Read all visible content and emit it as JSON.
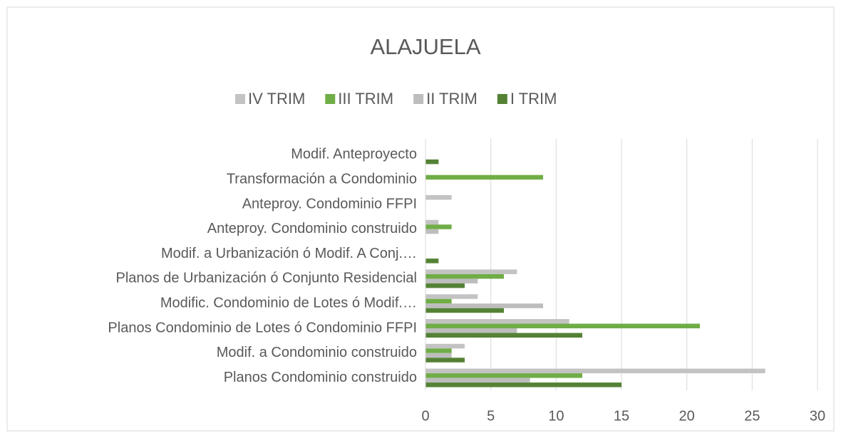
{
  "chart_data": {
    "type": "hbar",
    "title": "ALAJUELA",
    "categories": [
      "Planos Condominio construido",
      "Modif. a Condominio construido",
      "Planos Condominio de Lotes ó Condominio FFPI",
      "Modific. Condominio de Lotes ó Modif.…",
      "Planos de Urbanización ó Conjunto Residencial",
      "Modif. a Urbanización ó Modif. A Conj.…",
      "Anteproy. Condominio construido",
      "Anteproy. Condominio FFPI",
      "Transformación a Condominio",
      "Modif. Anteproyecto"
    ],
    "series": [
      {
        "name": "IV TRIM",
        "color": "#c3c3c3",
        "values": [
          26,
          3,
          11,
          4,
          7,
          0,
          1,
          2,
          0,
          0
        ]
      },
      {
        "name": "III TRIM",
        "color": "#70ad47",
        "values": [
          12,
          2,
          21,
          2,
          6,
          0,
          2,
          0,
          9,
          0
        ]
      },
      {
        "name": "II TRIM",
        "color": "#bdbdbd",
        "values": [
          8,
          2,
          7,
          9,
          4,
          0,
          1,
          0,
          0,
          0
        ]
      },
      {
        "name": "I TRIM",
        "color": "#548235",
        "values": [
          15,
          3,
          12,
          6,
          3,
          1,
          0,
          0,
          0,
          1
        ]
      }
    ],
    "xlim": [
      0,
      30
    ],
    "xticks": [
      0,
      5,
      10,
      15,
      20,
      25,
      30
    ],
    "grid": true,
    "legend": "top"
  }
}
